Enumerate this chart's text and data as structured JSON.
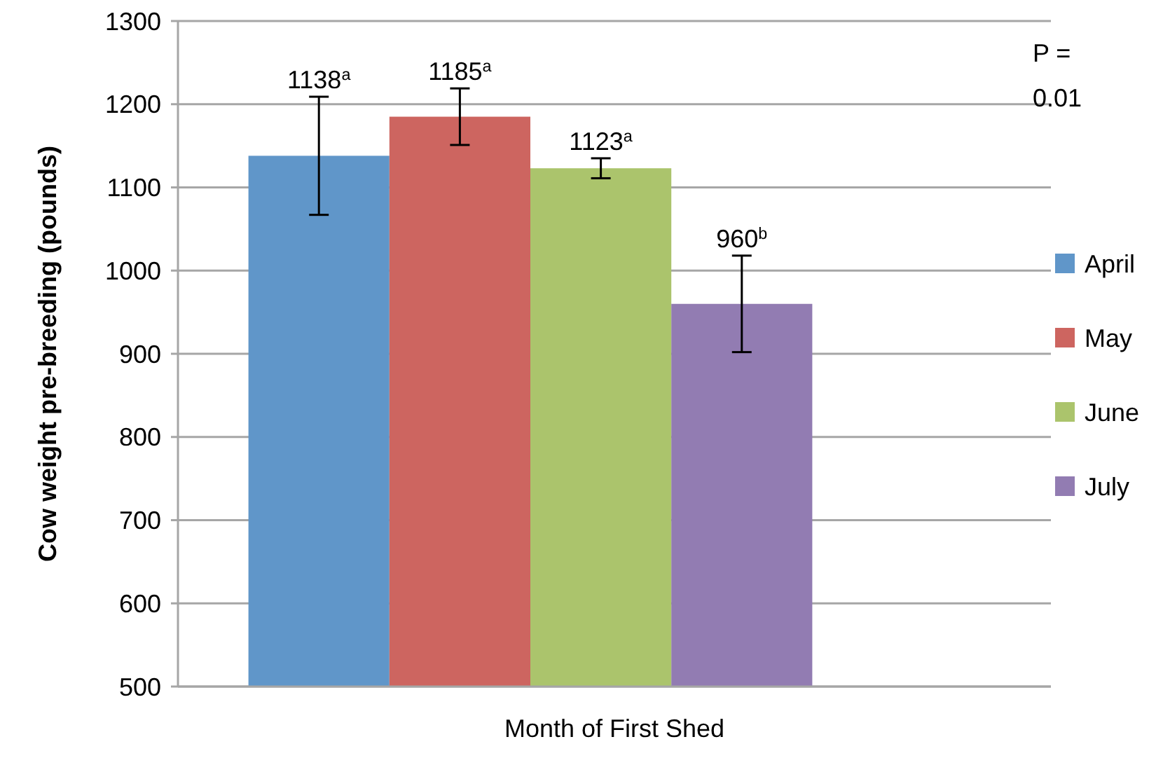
{
  "chart_data": {
    "type": "bar",
    "xlabel": "Month of First Shed",
    "ylabel": "Cow weight pre-breeding (pounds)",
    "categories": [
      null
    ],
    "series": [
      {
        "name": "April",
        "color": "#6096c9",
        "values": [
          1138
        ],
        "errors": [
          71
        ],
        "value_labels": [
          "1138$^{a}$"
        ]
      },
      {
        "name": "May",
        "color": "#cd6560",
        "values": [
          1185
        ],
        "errors": [
          34
        ],
        "value_labels": [
          "1185$^{a}$"
        ]
      },
      {
        "name": "June",
        "color": "#abc46c",
        "values": [
          1123
        ],
        "errors": [
          12
        ],
        "value_labels": [
          "1123$^{a}$"
        ]
      },
      {
        "name": "July",
        "color": "#927cb2",
        "values": [
          960
        ],
        "errors": [
          58
        ],
        "value_labels": [
          "960$^{b}$"
        ]
      }
    ],
    "ylim": [
      500,
      1300
    ],
    "yticks": [
      500,
      600,
      700,
      800,
      900,
      1000,
      1100,
      1200,
      1300
    ],
    "grid": "y",
    "legend": "right",
    "annotations": [
      "P = 0.01"
    ]
  }
}
